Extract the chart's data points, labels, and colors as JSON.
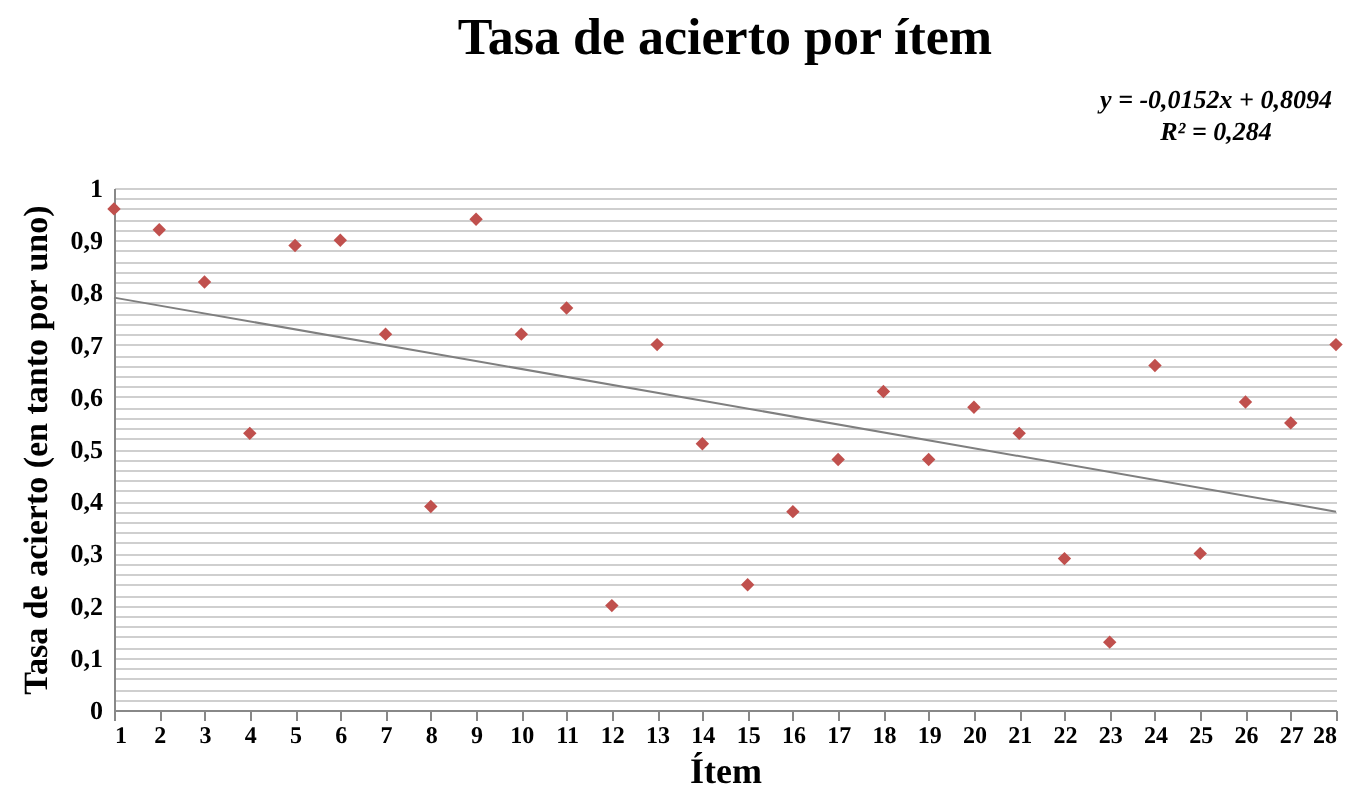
{
  "chart_data": {
    "type": "scatter",
    "title": "Tasa de acierto por ítem",
    "xlabel": "Ítem",
    "ylabel": "Tasa de acierto (en tanto por uno)",
    "x": [
      1,
      2,
      3,
      4,
      5,
      6,
      7,
      8,
      9,
      10,
      11,
      12,
      13,
      14,
      15,
      16,
      17,
      18,
      19,
      20,
      21,
      22,
      23,
      24,
      25,
      26,
      27,
      28
    ],
    "series": [
      {
        "color": "#c0504d",
        "marker": "diamond",
        "values": [
          0.96,
          0.92,
          0.82,
          0.53,
          0.89,
          0.9,
          0.72,
          0.39,
          0.94,
          0.72,
          0.77,
          0.2,
          0.7,
          0.51,
          0.24,
          0.38,
          0.48,
          0.61,
          0.48,
          0.58,
          0.53,
          0.29,
          0.13,
          0.66,
          0.3,
          0.59,
          0.55,
          0.7
        ]
      },
      {
        "type": "line",
        "color": "#7f7f7f",
        "marker": "none",
        "x": [
          1,
          28
        ],
        "values": [
          0.79,
          0.38
        ]
      }
    ],
    "xlim": [
      1,
      28
    ],
    "xticks": [
      1,
      2,
      3,
      4,
      5,
      6,
      7,
      8,
      9,
      10,
      11,
      12,
      13,
      14,
      15,
      16,
      17,
      18,
      19,
      20,
      21,
      22,
      23,
      24,
      25,
      26,
      27,
      28
    ],
    "ylim": [
      0,
      1
    ],
    "yticks": [
      0,
      {
        "value": 0.02,
        "label": null
      },
      {
        "value": 0.04,
        "label": null
      },
      {
        "value": 0.06,
        "label": null
      },
      {
        "value": 0.08,
        "label": null
      },
      {
        "value": 0.1,
        "label": "0,1"
      },
      {
        "value": 0.12,
        "label": null
      },
      {
        "value": 0.14,
        "label": null
      },
      {
        "value": 0.16,
        "label": null
      },
      {
        "value": 0.18,
        "label": null
      },
      {
        "value": 0.2,
        "label": "0,2"
      },
      {
        "value": 0.22,
        "label": null
      },
      {
        "value": 0.24,
        "label": null
      },
      {
        "value": 0.26,
        "label": null
      },
      {
        "value": 0.28,
        "label": null
      },
      {
        "value": 0.3,
        "label": "0,3"
      },
      {
        "value": 0.32,
        "label": null
      },
      {
        "value": 0.34,
        "label": null
      },
      {
        "value": 0.36,
        "label": null
      },
      {
        "value": 0.38,
        "label": null
      },
      {
        "value": 0.4,
        "label": "0,4"
      },
      {
        "value": 0.42,
        "label": null
      },
      {
        "value": 0.44,
        "label": null
      },
      {
        "value": 0.46,
        "label": null
      },
      {
        "value": 0.48,
        "label": null
      },
      {
        "value": 0.5,
        "label": "0,5"
      },
      {
        "value": 0.52,
        "label": null
      },
      {
        "value": 0.54,
        "label": null
      },
      {
        "value": 0.56,
        "label": null
      },
      {
        "value": 0.58,
        "label": null
      },
      {
        "value": 0.6,
        "label": "0,6"
      },
      {
        "value": 0.62,
        "label": null
      },
      {
        "value": 0.64,
        "label": null
      },
      {
        "value": 0.66,
        "label": null
      },
      {
        "value": 0.68,
        "label": null
      },
      {
        "value": 0.7,
        "label": "0,7"
      },
      {
        "value": 0.72,
        "label": null
      },
      {
        "value": 0.74,
        "label": null
      },
      {
        "value": 0.76,
        "label": null
      },
      {
        "value": 0.78,
        "label": null
      },
      {
        "value": 0.8,
        "label": "0,8"
      },
      {
        "value": 0.82,
        "label": null
      },
      {
        "value": 0.84,
        "label": null
      },
      {
        "value": 0.86,
        "label": null
      },
      {
        "value": 0.88,
        "label": null
      },
      {
        "value": 0.9,
        "label": "0,9"
      },
      {
        "value": 0.92,
        "label": null
      },
      {
        "value": 0.94,
        "label": null
      },
      {
        "value": 0.96,
        "label": null
      },
      {
        "value": 0.98,
        "label": null
      },
      1
    ],
    "grid": "y",
    "annotations": [
      "y = -0,0152x + 0,8094",
      "R² = 0,284"
    ]
  }
}
